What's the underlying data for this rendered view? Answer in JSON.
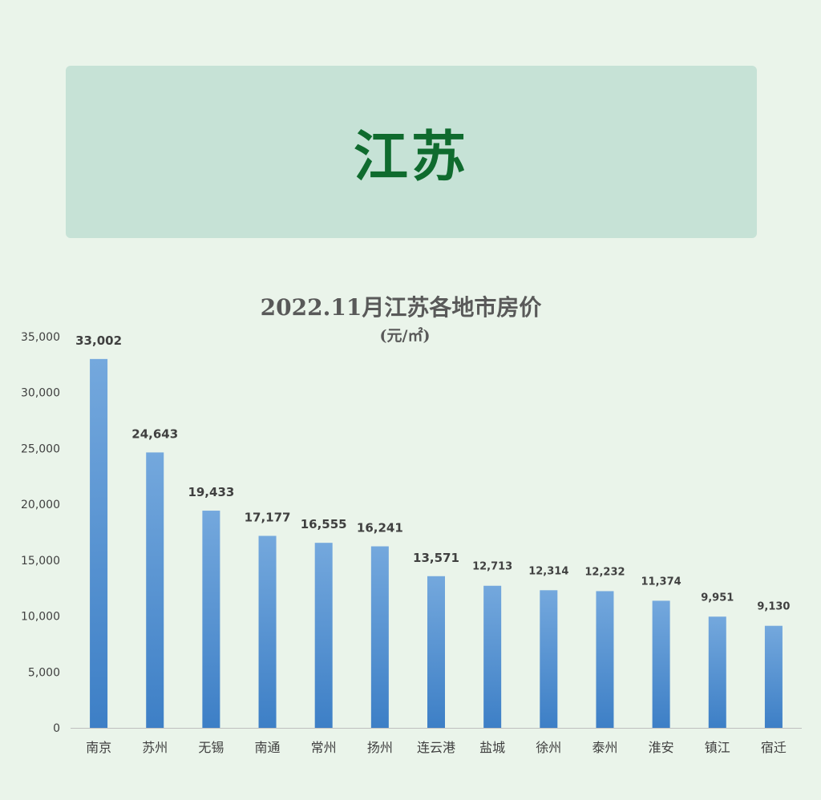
{
  "banner": {
    "title": "江苏"
  },
  "colors": {
    "bar_top": "#74a8dd",
    "bar_bottom": "#3d7fc6",
    "banner_bg": "#c6e2d6",
    "banner_text": "#0f6b2e"
  },
  "chart_data": {
    "type": "bar",
    "title": "2022.11月江苏各地市房价",
    "subtitle": "(元/㎡)",
    "categories": [
      "南京",
      "苏州",
      "无锡",
      "南通",
      "常州",
      "扬州",
      "连云港",
      "盐城",
      "徐州",
      "泰州",
      "淮安",
      "镇江",
      "宿迁"
    ],
    "values": [
      33002,
      24643,
      19433,
      17177,
      16555,
      16241,
      13571,
      12713,
      12314,
      12232,
      11374,
      9951,
      9130
    ],
    "data_labels": [
      "33,002",
      "24,643",
      "19,433",
      "17,177",
      "16,555",
      "16,241",
      "13,571",
      "12,713",
      "12,314",
      "12,232",
      "11,374",
      "9,951",
      "9,130"
    ],
    "ylim": [
      0,
      35000
    ],
    "yticks": [
      0,
      5000,
      10000,
      15000,
      20000,
      25000,
      30000,
      35000
    ],
    "ytick_labels": [
      "0",
      "5,000",
      "10,000",
      "15,000",
      "20,000",
      "25,000",
      "30,000",
      "35,000"
    ],
    "xlabel": "",
    "ylabel": "",
    "grid": false,
    "legend": "none"
  }
}
